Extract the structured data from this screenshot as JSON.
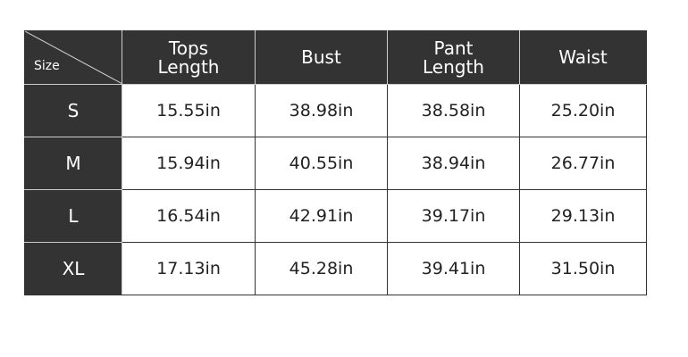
{
  "corner_label": "Size",
  "headers": [
    [
      "Tops",
      "Length"
    ],
    [
      "Bust",
      ""
    ],
    [
      "Pant",
      "Length"
    ],
    [
      "Waist",
      ""
    ]
  ],
  "rows": [
    {
      "size": "S",
      "values": [
        "15.55in",
        "38.98in",
        "38.58in",
        "25.20in"
      ]
    },
    {
      "size": "M",
      "values": [
        "15.94in",
        "40.55in",
        "38.94in",
        "26.77in"
      ]
    },
    {
      "size": "L",
      "values": [
        "16.54in",
        "42.91in",
        "39.17in",
        "29.13in"
      ]
    },
    {
      "size": "XL",
      "values": [
        "17.13in",
        "45.28in",
        "39.41in",
        "31.50in"
      ]
    }
  ],
  "colors": {
    "header_bg": "#333333",
    "cell_bg": "#ffffff"
  }
}
